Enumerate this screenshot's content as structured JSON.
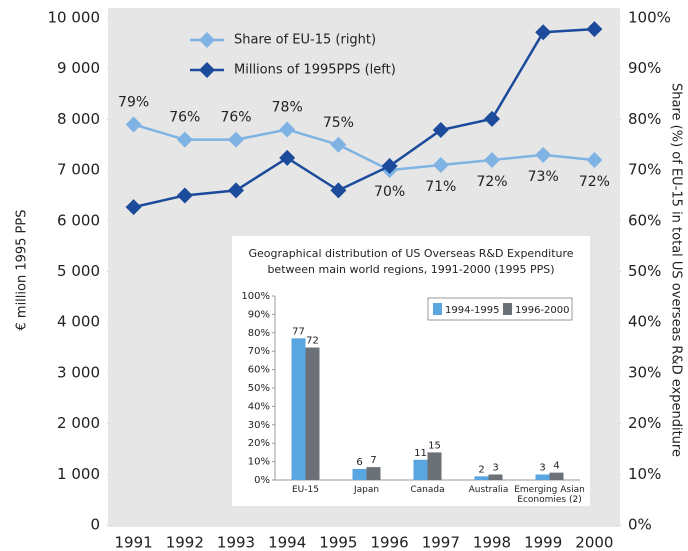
{
  "chart_data": [
    {
      "type": "line",
      "categories": [
        "1991",
        "1992",
        "1993",
        "1994",
        "1995",
        "1996",
        "1997",
        "1998",
        "1999",
        "2000"
      ],
      "y_label": "€ million 1995 PPS",
      "y2_label": "Share (%) of EU-15 in total US overseas R&D expenditure",
      "ylim": [
        0,
        10000
      ],
      "yticks": [
        0,
        {
          "value": 1000,
          "label": "1 000"
        },
        {
          "value": 2000,
          "label": "2 000"
        },
        {
          "value": 3000,
          "label": "3 000"
        },
        {
          "value": 4000,
          "label": "4 000"
        },
        {
          "value": 5000,
          "label": "5 000"
        },
        {
          "value": 6000,
          "label": "6 000"
        },
        {
          "value": 7000,
          "label": "7 000"
        },
        {
          "value": 8000,
          "label": "8 000"
        },
        {
          "value": 9000,
          "label": "9 000"
        },
        {
          "value": 10000,
          "label": "10 000"
        }
      ],
      "y2lim": [
        0,
        100
      ],
      "y2ticks": [
        {
          "value": 0,
          "label": "0%"
        },
        {
          "value": 10,
          "label": "10%"
        },
        {
          "value": 20,
          "label": "20%"
        },
        {
          "value": 30,
          "label": "30%"
        },
        {
          "value": 40,
          "label": "40%"
        },
        {
          "value": 50,
          "label": "50%"
        },
        {
          "value": 60,
          "label": "60%"
        },
        {
          "value": 70,
          "label": "70%"
        },
        {
          "value": 80,
          "label": "80%"
        },
        {
          "value": 90,
          "label": "90%"
        },
        {
          "value": 100,
          "label": "100%"
        }
      ],
      "series": [
        {
          "name": "Share of EU-15 (right)",
          "color": "#7fb3e3",
          "axis": "y2",
          "values": [
            79,
            76,
            76,
            78,
            75,
            70,
            71,
            72,
            73,
            72
          ],
          "value_labels": [
            "79%",
            "76%",
            "76%",
            "78%",
            "75%",
            "70%",
            "71%",
            "72%",
            "73%",
            "72%"
          ]
        },
        {
          "name": "Millions of 1995PPS (left)",
          "color": "#1c4b9b",
          "axis": "y",
          "values": [
            6270,
            6500,
            6600,
            7240,
            6600,
            7080,
            7790,
            8010,
            9720,
            9780
          ]
        }
      ]
    },
    {
      "type": "bar",
      "title": "Geographical distribution of US Overseas R&D Expenditure between main world regions, 1991-2000 (1995 PPS)",
      "categories": [
        "EU-15",
        "Japan",
        "Canada",
        "Australia",
        "Emerging Asian Economies (2)"
      ],
      "ylim": [
        0,
        100
      ],
      "yticks": [
        {
          "value": 0,
          "label": "0%"
        },
        {
          "value": 10,
          "label": "10%"
        },
        {
          "value": 20,
          "label": "20%"
        },
        {
          "value": 30,
          "label": "30%"
        },
        {
          "value": 40,
          "label": "40%"
        },
        {
          "value": 50,
          "label": "50%"
        },
        {
          "value": 60,
          "label": "60%"
        },
        {
          "value": 70,
          "label": "70%"
        },
        {
          "value": 80,
          "label": "80%"
        },
        {
          "value": 90,
          "label": "90%"
        },
        {
          "value": 100,
          "label": "100%"
        }
      ],
      "series": [
        {
          "name": "1994-1995",
          "color": "#5aa6e0",
          "values": [
            77,
            6,
            11,
            2,
            3
          ]
        },
        {
          "name": "1996-2000",
          "color": "#6b7177",
          "values": [
            72,
            7,
            15,
            3,
            4
          ]
        }
      ]
    }
  ]
}
